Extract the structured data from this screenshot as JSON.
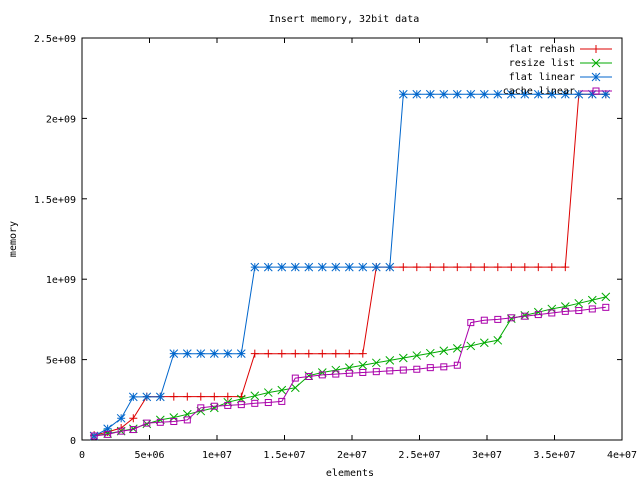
{
  "chart_data": {
    "type": "line",
    "title": "Insert memory, 32bit data",
    "xlabel": "elements",
    "ylabel": "memory",
    "xlim": [
      0,
      40000000
    ],
    "ylim": [
      0,
      2500000000
    ],
    "grid": false,
    "legend_position": "top-right",
    "x_ticks": [
      {
        "value": 0,
        "label": "0"
      },
      {
        "value": 5000000,
        "label": "5e+06"
      },
      {
        "value": 10000000,
        "label": "1e+07"
      },
      {
        "value": 15000000,
        "label": "1.5e+07"
      },
      {
        "value": 20000000,
        "label": "2e+07"
      },
      {
        "value": 25000000,
        "label": "2.5e+07"
      },
      {
        "value": 30000000,
        "label": "3e+07"
      },
      {
        "value": 35000000,
        "label": "3.5e+07"
      },
      {
        "value": 40000000,
        "label": "4e+07"
      }
    ],
    "y_ticks": [
      {
        "value": 0,
        "label": "0"
      },
      {
        "value": 500000000,
        "label": "5e+08"
      },
      {
        "value": 1000000000,
        "label": "1e+09"
      },
      {
        "value": 1500000000,
        "label": "1.5e+09"
      },
      {
        "value": 2000000000,
        "label": "2e+09"
      },
      {
        "value": 2500000000,
        "label": "2.5e+09"
      }
    ],
    "series": [
      {
        "name": "flat rehash",
        "color": "#dd0000",
        "marker": "plus",
        "points": [
          [
            900000,
            30000000
          ],
          [
            1900000,
            50000000
          ],
          [
            2900000,
            75000000
          ],
          [
            3800000,
            135000000
          ],
          [
            4800000,
            270000000
          ],
          [
            5800000,
            270000000
          ],
          [
            6800000,
            270000000
          ],
          [
            7800000,
            270000000
          ],
          [
            8800000,
            270000000
          ],
          [
            9800000,
            270000000
          ],
          [
            10800000,
            270000000
          ],
          [
            11800000,
            270000000
          ],
          [
            12800000,
            537000000
          ],
          [
            13800000,
            537000000
          ],
          [
            14800000,
            537000000
          ],
          [
            15800000,
            537000000
          ],
          [
            16800000,
            537000000
          ],
          [
            17800000,
            537000000
          ],
          [
            18800000,
            537000000
          ],
          [
            19800000,
            537000000
          ],
          [
            20800000,
            537000000
          ],
          [
            21800000,
            1075000000
          ],
          [
            22800000,
            1075000000
          ],
          [
            23800000,
            1075000000
          ],
          [
            24800000,
            1075000000
          ],
          [
            25800000,
            1075000000
          ],
          [
            26800000,
            1075000000
          ],
          [
            27800000,
            1075000000
          ],
          [
            28800000,
            1075000000
          ],
          [
            29800000,
            1075000000
          ],
          [
            30800000,
            1075000000
          ],
          [
            31800000,
            1075000000
          ],
          [
            32800000,
            1075000000
          ],
          [
            33800000,
            1075000000
          ],
          [
            34800000,
            1075000000
          ],
          [
            35800000,
            1075000000
          ],
          [
            36800000,
            2150000000
          ],
          [
            37800000,
            2150000000
          ],
          [
            38800000,
            2150000000
          ]
        ]
      },
      {
        "name": "resize list",
        "color": "#00aa00",
        "marker": "cross",
        "points": [
          [
            900000,
            25000000
          ],
          [
            1900000,
            40000000
          ],
          [
            2900000,
            55000000
          ],
          [
            3800000,
            70000000
          ],
          [
            4800000,
            100000000
          ],
          [
            5800000,
            125000000
          ],
          [
            6800000,
            140000000
          ],
          [
            7800000,
            160000000
          ],
          [
            8800000,
            180000000
          ],
          [
            9800000,
            200000000
          ],
          [
            10800000,
            235000000
          ],
          [
            11800000,
            255000000
          ],
          [
            12800000,
            275000000
          ],
          [
            13800000,
            295000000
          ],
          [
            14800000,
            310000000
          ],
          [
            15800000,
            325000000
          ],
          [
            16800000,
            400000000
          ],
          [
            17800000,
            420000000
          ],
          [
            18800000,
            435000000
          ],
          [
            19800000,
            450000000
          ],
          [
            20800000,
            465000000
          ],
          [
            21800000,
            480000000
          ],
          [
            22800000,
            495000000
          ],
          [
            23800000,
            510000000
          ],
          [
            24800000,
            525000000
          ],
          [
            25800000,
            540000000
          ],
          [
            26800000,
            555000000
          ],
          [
            27800000,
            570000000
          ],
          [
            28800000,
            585000000
          ],
          [
            29800000,
            605000000
          ],
          [
            30800000,
            620000000
          ],
          [
            31800000,
            755000000
          ],
          [
            32800000,
            775000000
          ],
          [
            33800000,
            795000000
          ],
          [
            34800000,
            815000000
          ],
          [
            35800000,
            830000000
          ],
          [
            36800000,
            850000000
          ],
          [
            37800000,
            870000000
          ],
          [
            38800000,
            890000000
          ]
        ]
      },
      {
        "name": "flat linear",
        "color": "#0066cc",
        "marker": "star",
        "points": [
          [
            900000,
            25000000
          ],
          [
            1900000,
            70000000
          ],
          [
            2900000,
            135000000
          ],
          [
            3800000,
            268000000
          ],
          [
            4800000,
            268000000
          ],
          [
            5800000,
            268000000
          ],
          [
            6800000,
            537000000
          ],
          [
            7800000,
            537000000
          ],
          [
            8800000,
            537000000
          ],
          [
            9800000,
            537000000
          ],
          [
            10800000,
            537000000
          ],
          [
            11800000,
            537000000
          ],
          [
            12800000,
            1075000000
          ],
          [
            13800000,
            1075000000
          ],
          [
            14800000,
            1075000000
          ],
          [
            15800000,
            1075000000
          ],
          [
            16800000,
            1075000000
          ],
          [
            17800000,
            1075000000
          ],
          [
            18800000,
            1075000000
          ],
          [
            19800000,
            1075000000
          ],
          [
            20800000,
            1075000000
          ],
          [
            21800000,
            1075000000
          ],
          [
            22800000,
            1075000000
          ],
          [
            23800000,
            2150000000
          ],
          [
            24800000,
            2150000000
          ],
          [
            25800000,
            2150000000
          ],
          [
            26800000,
            2150000000
          ],
          [
            27800000,
            2150000000
          ],
          [
            28800000,
            2150000000
          ],
          [
            29800000,
            2150000000
          ],
          [
            30800000,
            2150000000
          ],
          [
            31800000,
            2150000000
          ],
          [
            32800000,
            2150000000
          ],
          [
            33800000,
            2150000000
          ],
          [
            34800000,
            2150000000
          ],
          [
            35800000,
            2150000000
          ],
          [
            36800000,
            2150000000
          ],
          [
            37800000,
            2150000000
          ],
          [
            38800000,
            2150000000
          ]
        ]
      },
      {
        "name": "cache linear",
        "color": "#aa00aa",
        "marker": "square",
        "points": [
          [
            900000,
            25000000
          ],
          [
            1900000,
            35000000
          ],
          [
            2900000,
            55000000
          ],
          [
            3800000,
            65000000
          ],
          [
            4800000,
            105000000
          ],
          [
            5800000,
            110000000
          ],
          [
            6800000,
            115000000
          ],
          [
            7800000,
            125000000
          ],
          [
            8800000,
            200000000
          ],
          [
            9800000,
            210000000
          ],
          [
            10800000,
            215000000
          ],
          [
            11800000,
            220000000
          ],
          [
            12800000,
            228000000
          ],
          [
            13800000,
            233000000
          ],
          [
            14800000,
            240000000
          ],
          [
            15800000,
            385000000
          ],
          [
            16800000,
            395000000
          ],
          [
            17800000,
            405000000
          ],
          [
            18800000,
            410000000
          ],
          [
            19800000,
            415000000
          ],
          [
            20800000,
            420000000
          ],
          [
            21800000,
            425000000
          ],
          [
            22800000,
            430000000
          ],
          [
            23800000,
            435000000
          ],
          [
            24800000,
            440000000
          ],
          [
            25800000,
            450000000
          ],
          [
            26800000,
            455000000
          ],
          [
            27800000,
            465000000
          ],
          [
            28800000,
            730000000
          ],
          [
            29800000,
            745000000
          ],
          [
            30800000,
            750000000
          ],
          [
            31800000,
            760000000
          ],
          [
            32800000,
            770000000
          ],
          [
            33800000,
            780000000
          ],
          [
            34800000,
            790000000
          ],
          [
            35800000,
            800000000
          ],
          [
            36800000,
            805000000
          ],
          [
            37800000,
            815000000
          ],
          [
            38800000,
            825000000
          ]
        ]
      }
    ]
  }
}
